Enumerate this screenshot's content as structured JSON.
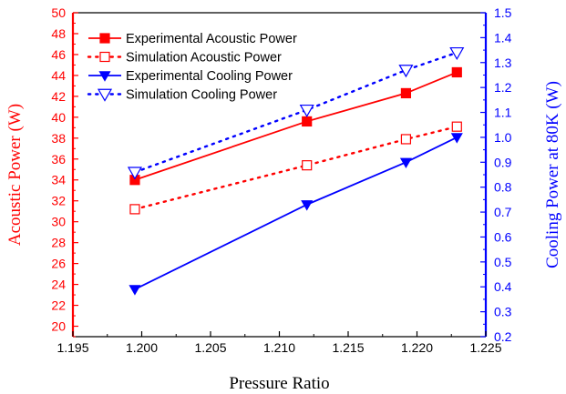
{
  "chart_data": {
    "type": "line",
    "xlabel": "Pressure Ratio",
    "ylabel_left": "Acoustic Power (W)",
    "ylabel_right": "Cooling  Power at 80K (W)",
    "xlim": [
      1.195,
      1.225
    ],
    "ylim_left": [
      19,
      50
    ],
    "ylim_right": [
      0.2,
      1.5
    ],
    "x_ticks": [
      "1.195",
      "1.200",
      "1.205",
      "1.210",
      "1.215",
      "1.220",
      "1.225"
    ],
    "y_left_ticks": [
      "20",
      "22",
      "24",
      "26",
      "28",
      "30",
      "32",
      "34",
      "36",
      "38",
      "40",
      "42",
      "44",
      "46",
      "48",
      "50"
    ],
    "y_right_ticks": [
      "0.2",
      "0.3",
      "0.4",
      "0.5",
      "0.6",
      "0.7",
      "0.8",
      "0.9",
      "1.0",
      "1.1",
      "1.2",
      "1.3",
      "1.4",
      "1.5"
    ],
    "grid": false,
    "legend_position": "top-left",
    "colors": {
      "left_axis": "#ff0000",
      "right_axis": "#0000ff",
      "black": "#000000"
    },
    "series": [
      {
        "name": "Experimental Acoustic Power",
        "axis": "left",
        "x": [
          1.1995,
          1.212,
          1.2192,
          1.2229
        ],
        "values": [
          34.0,
          39.6,
          42.3,
          44.3
        ],
        "color": "#ff0000",
        "line": "solid",
        "marker": "square-filled"
      },
      {
        "name": "Simulation Acoustic Power",
        "axis": "left",
        "x": [
          1.1995,
          1.212,
          1.2192,
          1.2229
        ],
        "values": [
          31.2,
          35.4,
          37.9,
          39.1
        ],
        "color": "#ff0000",
        "line": "dotted",
        "marker": "square-open"
      },
      {
        "name": "Experimental Cooling Power",
        "axis": "right",
        "x": [
          1.1995,
          1.212,
          1.2192,
          1.2229
        ],
        "values": [
          0.39,
          0.73,
          0.9,
          1.0
        ],
        "color": "#0000ff",
        "line": "solid",
        "marker": "triangle-down-filled"
      },
      {
        "name": "Simulation Cooling Power",
        "axis": "right",
        "x": [
          1.1995,
          1.212,
          1.2192,
          1.2229
        ],
        "values": [
          0.86,
          1.11,
          1.27,
          1.34
        ],
        "color": "#0000ff",
        "line": "dotted",
        "marker": "triangle-down-open"
      }
    ]
  }
}
